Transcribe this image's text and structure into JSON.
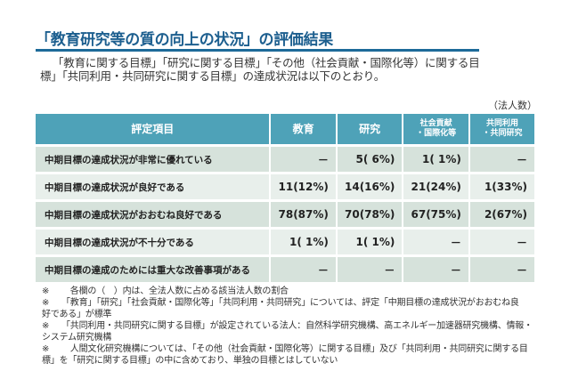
{
  "header": {
    "title": "「教育研究等の質の向上の状況」の評価結果"
  },
  "intro": {
    "line1": "「教育に関する目標」「研究に関する目標」「その他（社会貢献・国際化等）に関する目",
    "line2": "標」「共同利用・共同研究に関する目標」の達成状況は以下のとおり。"
  },
  "unit_label": "（法人数）",
  "table": {
    "headers": {
      "item": "評定項目",
      "education": "教育",
      "research": "研究",
      "social_line1": "社会貢献",
      "social_line2": "・国際化等",
      "joint_line1": "共同利用",
      "joint_line2": "・共同研究"
    },
    "rows": [
      {
        "item": "中期目標の達成状況が非常に優れている",
        "education": "－",
        "research": "5(  6%)",
        "social": "1(  1%)",
        "joint": "－"
      },
      {
        "item": "中期目標の達成状況が良好である",
        "education": "11(12%)",
        "research": "14(16%)",
        "social": "21(24%)",
        "joint": "1(33%)"
      },
      {
        "item": "中期目標の達成状況がおおむね良好である",
        "education": "78(87%)",
        "research": "70(78%)",
        "social": "67(75%)",
        "joint": "2(67%)"
      },
      {
        "item": "中期目標の達成状況が不十分である",
        "education": "1(  1%)",
        "research": "1(  1%)",
        "social": "－",
        "joint": "－"
      },
      {
        "item": "中期目標の達成のためには重大な改善事項がある",
        "education": "－",
        "research": "－",
        "social": "－",
        "joint": "－"
      }
    ]
  },
  "notes": [
    {
      "mark": "※",
      "line1": "　各欄の（　）内は、全法人数に占める該当法人数の割合",
      "line2": ""
    },
    {
      "mark": "※",
      "line1": "「教育」「研究」「社会貢献・国際化等」「共同利用・共同研究」については、評定「中期目標の達成状況がおおむね良",
      "line2": "好である」が標準"
    },
    {
      "mark": "※",
      "line1": "「共同利用・共同研究に関する目標」が設定されている法人：自然科学研究機構、高エネルギー加速器研究機構、情報・",
      "line2": "システム研究機構"
    },
    {
      "mark": "※",
      "line1": "　人間文化研究機構については、「その他（社会貢献・国際化等）に関する目標」及び「共同利用・共同研究に関する目",
      "line2": "標」を「研究に関する目標」の中に含めており、単独の目標とはしていない"
    }
  ],
  "colors": {
    "title": "#1d5f8f",
    "rule": "#1d6a99",
    "header_bg": "#4ea2b8",
    "row_odd": "#d6e2db",
    "row_even": "#e8efeb"
  }
}
